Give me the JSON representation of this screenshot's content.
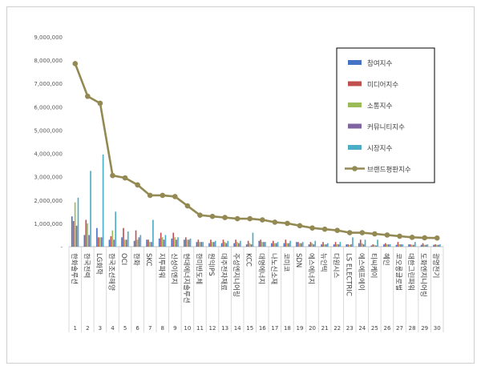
{
  "chart_data": {
    "type": "bar",
    "title": "",
    "xlabel": "",
    "ylabel": "",
    "ylim": [
      0,
      9000000
    ],
    "y_ticks": [
      "-",
      "1,000,000",
      "2,000,000",
      "3,000,000",
      "4,000,000",
      "5,000,000",
      "6,000,000",
      "7,000,000",
      "8,000,000",
      "9,000,000"
    ],
    "grid": false,
    "legend_position": "top-right",
    "ranks": [
      "1",
      "2",
      "3",
      "4",
      "5",
      "6",
      "7",
      "8",
      "9",
      "10",
      "11",
      "12",
      "13",
      "14",
      "15",
      "16",
      "17",
      "18",
      "19",
      "20",
      "21",
      "22",
      "23",
      "24",
      "25",
      "26",
      "27",
      "28",
      "29",
      "30"
    ],
    "categories": [
      "한화솔루션",
      "한국전력",
      "LG화학",
      "한국조선해양",
      "OCI",
      "한화",
      "SKC",
      "지투파워",
      "신성이엔지",
      "현대에너지솔루션",
      "한미반도체",
      "원익IPS",
      "대주전자재료",
      "주성엔지니어링",
      "KCC",
      "대명에너지",
      "나노신소재",
      "코미코",
      "SDN",
      "에스에너지",
      "뉴인텍",
      "다원시스",
      "LS ELECTRIC",
      "에스에프에이",
      "티씨케이",
      "혜인",
      "코오롱글로벌",
      "대한그린파워",
      "도화엔지니어링",
      "광명전기"
    ],
    "series": [
      {
        "name": "참여지수",
        "color": "#4472c4",
        "kind": "bar",
        "values": [
          1300000,
          500000,
          800000,
          300000,
          400000,
          250000,
          300000,
          350000,
          350000,
          300000,
          200000,
          150000,
          150000,
          150000,
          100000,
          250000,
          150000,
          150000,
          200000,
          100000,
          100000,
          100000,
          100000,
          150000,
          50000,
          100000,
          80000,
          100000,
          80000,
          80000
        ]
      },
      {
        "name": "미디어지수",
        "color": "#c0504d",
        "kind": "bar",
        "values": [
          1100000,
          1150000,
          400000,
          450000,
          800000,
          700000,
          300000,
          600000,
          600000,
          400000,
          300000,
          300000,
          300000,
          300000,
          250000,
          300000,
          250000,
          300000,
          200000,
          200000,
          200000,
          200000,
          100000,
          300000,
          100000,
          150000,
          200000,
          100000,
          150000,
          100000
        ]
      },
      {
        "name": "소통지수",
        "color": "#9bbb59",
        "kind": "bar",
        "values": [
          1900000,
          1000000,
          400000,
          700000,
          300000,
          300000,
          200000,
          400000,
          400000,
          300000,
          200000,
          200000,
          200000,
          200000,
          150000,
          200000,
          150000,
          150000,
          150000,
          150000,
          100000,
          100000,
          80000,
          150000,
          80000,
          100000,
          100000,
          80000,
          80000,
          80000
        ]
      },
      {
        "name": "커뮤니티지수",
        "color": "#8064a2",
        "kind": "bar",
        "values": [
          900000,
          500000,
          400000,
          300000,
          300000,
          400000,
          200000,
          300000,
          300000,
          300000,
          200000,
          200000,
          150000,
          150000,
          100000,
          200000,
          150000,
          150000,
          150000,
          100000,
          100000,
          100000,
          100000,
          100000,
          50000,
          100000,
          100000,
          80000,
          80000,
          80000
        ]
      },
      {
        "name": "시장지수",
        "color": "#4bacc6",
        "kind": "bar",
        "values": [
          2100000,
          3250000,
          3950000,
          1500000,
          650000,
          500000,
          1150000,
          500000,
          400000,
          350000,
          200000,
          250000,
          250000,
          250000,
          600000,
          200000,
          200000,
          250000,
          200000,
          250000,
          150000,
          200000,
          400000,
          300000,
          300000,
          100000,
          100000,
          200000,
          100000,
          100000
        ]
      },
      {
        "name": "브랜드평판지수",
        "color": "#938953",
        "kind": "line",
        "values": [
          7850000,
          6450000,
          6150000,
          3050000,
          2950000,
          2650000,
          2200000,
          2200000,
          2150000,
          1750000,
          1350000,
          1300000,
          1250000,
          1200000,
          1200000,
          1150000,
          1050000,
          1000000,
          900000,
          800000,
          750000,
          700000,
          600000,
          600000,
          550000,
          500000,
          450000,
          400000,
          380000,
          370000
        ]
      }
    ]
  }
}
